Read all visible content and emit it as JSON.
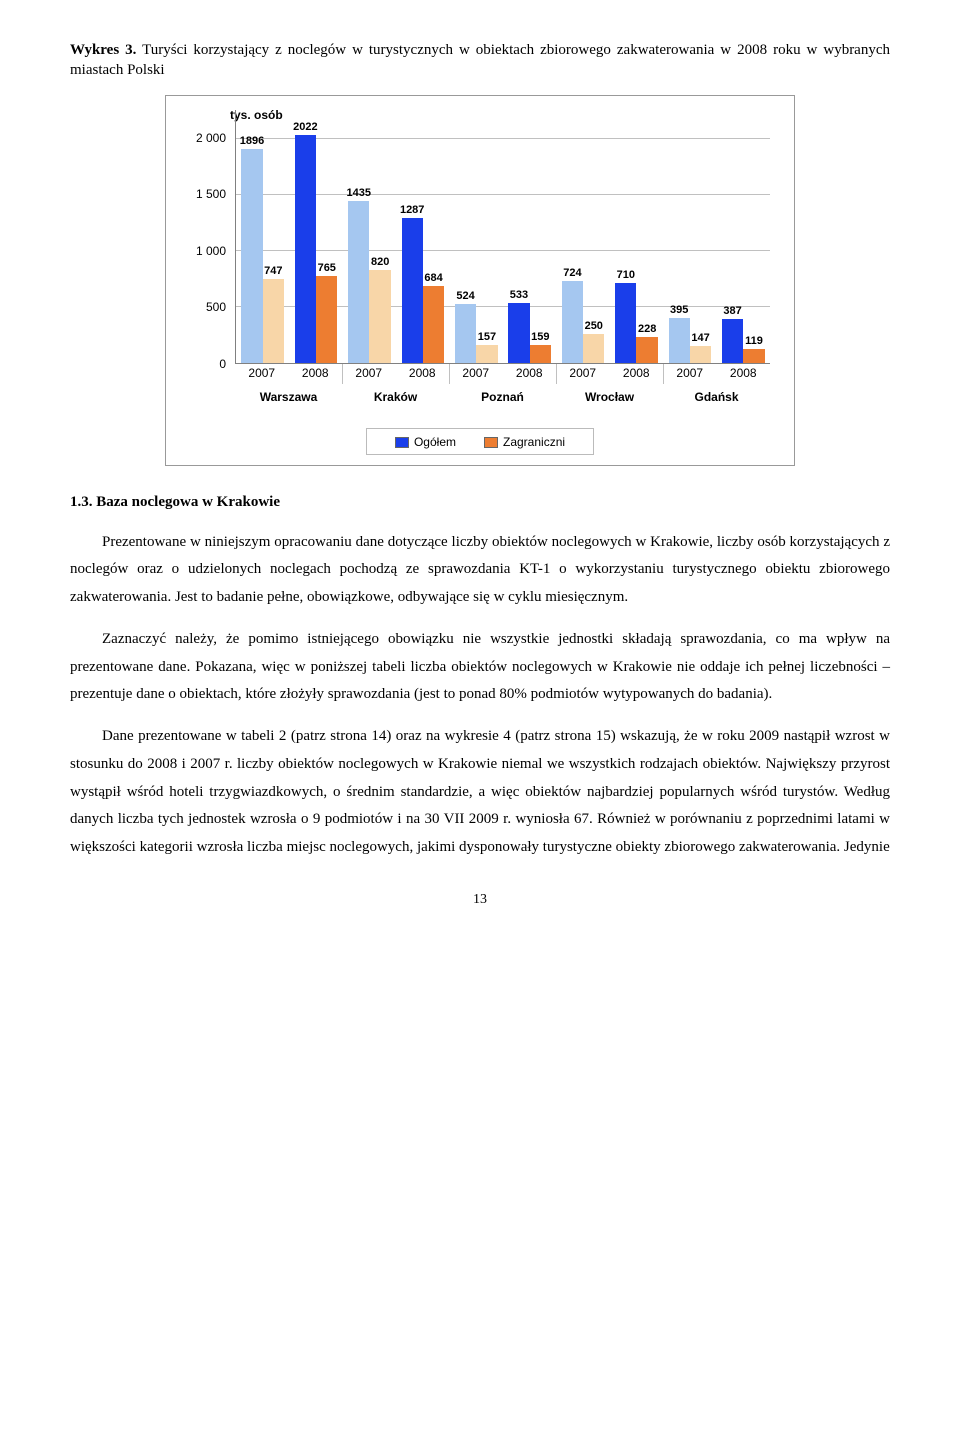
{
  "caption": {
    "prefix": "Wykres 3.",
    "rest": " Turyści korzystający z noclegów w turystycznych w obiektach zbiorowego zakwaterowania w 2008 roku w wybranych miastach Polski"
  },
  "chart": {
    "type": "bar",
    "y_title": "tys. osób",
    "y_max": 2250,
    "y_ticks": [
      0,
      500,
      1000,
      1500,
      2000
    ],
    "y_tick_labels": [
      "0",
      "500",
      "1 000",
      "1 500",
      "2 000"
    ],
    "plot_bg": "#ffffff",
    "grid_color": "#c0c0c0",
    "axis_color": "#808080",
    "label_fontsize": 12,
    "bar_label_fontsize": 11,
    "cities": [
      {
        "name": "Warszawa",
        "years": [
          {
            "year": "2007",
            "ogolem": 1896,
            "zagraniczni": 747
          },
          {
            "year": "2008",
            "ogolem": 2022,
            "zagraniczni": 765
          }
        ]
      },
      {
        "name": "Kraków",
        "years": [
          {
            "year": "2007",
            "ogolem": 1435,
            "zagraniczni": 820
          },
          {
            "year": "2008",
            "ogolem": 1287,
            "zagraniczni": 684
          }
        ]
      },
      {
        "name": "Poznań",
        "years": [
          {
            "year": "2007",
            "ogolem": 524,
            "zagraniczni": 157
          },
          {
            "year": "2008",
            "ogolem": 533,
            "zagraniczni": 159
          }
        ]
      },
      {
        "name": "Wrocław",
        "years": [
          {
            "year": "2007",
            "ogolem": 724,
            "zagraniczni": 250
          },
          {
            "year": "2008",
            "ogolem": 710,
            "zagraniczni": 228
          }
        ]
      },
      {
        "name": "Gdańsk",
        "years": [
          {
            "year": "2007",
            "ogolem": 395,
            "zagraniczni": 147
          },
          {
            "year": "2008",
            "ogolem": 387,
            "zagraniczni": 119
          }
        ]
      }
    ],
    "series_colors": {
      "ogolem_2007": "#a5c7f0",
      "ogolem_2008": "#1a3eea",
      "zagraniczni_2007": "#f8d6a8",
      "zagraniczni_2008": "#ed7d31"
    },
    "legend": {
      "items": [
        {
          "label": "Ogółem",
          "color": "#1a3eea"
        },
        {
          "label": "Zagraniczni",
          "color": "#ed7d31"
        }
      ]
    }
  },
  "heading": "1.3. Baza noclegowa w Krakowie",
  "paragraphs": {
    "p1": "Prezentowane w niniejszym opracowaniu dane dotyczące liczby obiektów noclegowych w Krakowie, liczby osób korzystających z noclegów oraz o udzielonych noclegach pochodzą ze sprawozdania KT-1 o wykorzystaniu turystycznego obiektu zbiorowego zakwaterowania. Jest to badanie pełne, obowiązkowe, odbywające się w cyklu miesięcznym.",
    "p2": "Zaznaczyć należy, że pomimo istniejącego obowiązku nie wszystkie jednostki składają sprawozdania, co ma wpływ na prezentowane dane. Pokazana, więc w poniższej tabeli liczba obiektów noclegowych w Krakowie nie oddaje ich pełnej liczebności – prezentuje dane o obiektach, które złożyły sprawozdania (jest to ponad 80% podmiotów wytypowanych do badania).",
    "p3": "Dane prezentowane w tabeli 2 (patrz strona 14) oraz na wykresie 4 (patrz strona 15) wskazują, że w roku 2009 nastąpił wzrost w stosunku do 2008 i 2007 r. liczby obiektów noclegowych w Krakowie niemal we wszystkich rodzajach obiektów. Największy przyrost wystąpił wśród hoteli trzygwiazdkowych, o średnim standardzie, a więc obiektów najbardziej popularnych wśród turystów. Według danych liczba tych jednostek wzrosła o 9 podmiotów i na 30 VII 2009 r. wyniosła 67. Również w porównaniu z poprzednimi latami w większości kategorii wzrosła liczba miejsc noclegowych, jakimi dysponowały turystyczne obiekty zbiorowego zakwaterowania. Jedynie"
  },
  "page_number": "13"
}
